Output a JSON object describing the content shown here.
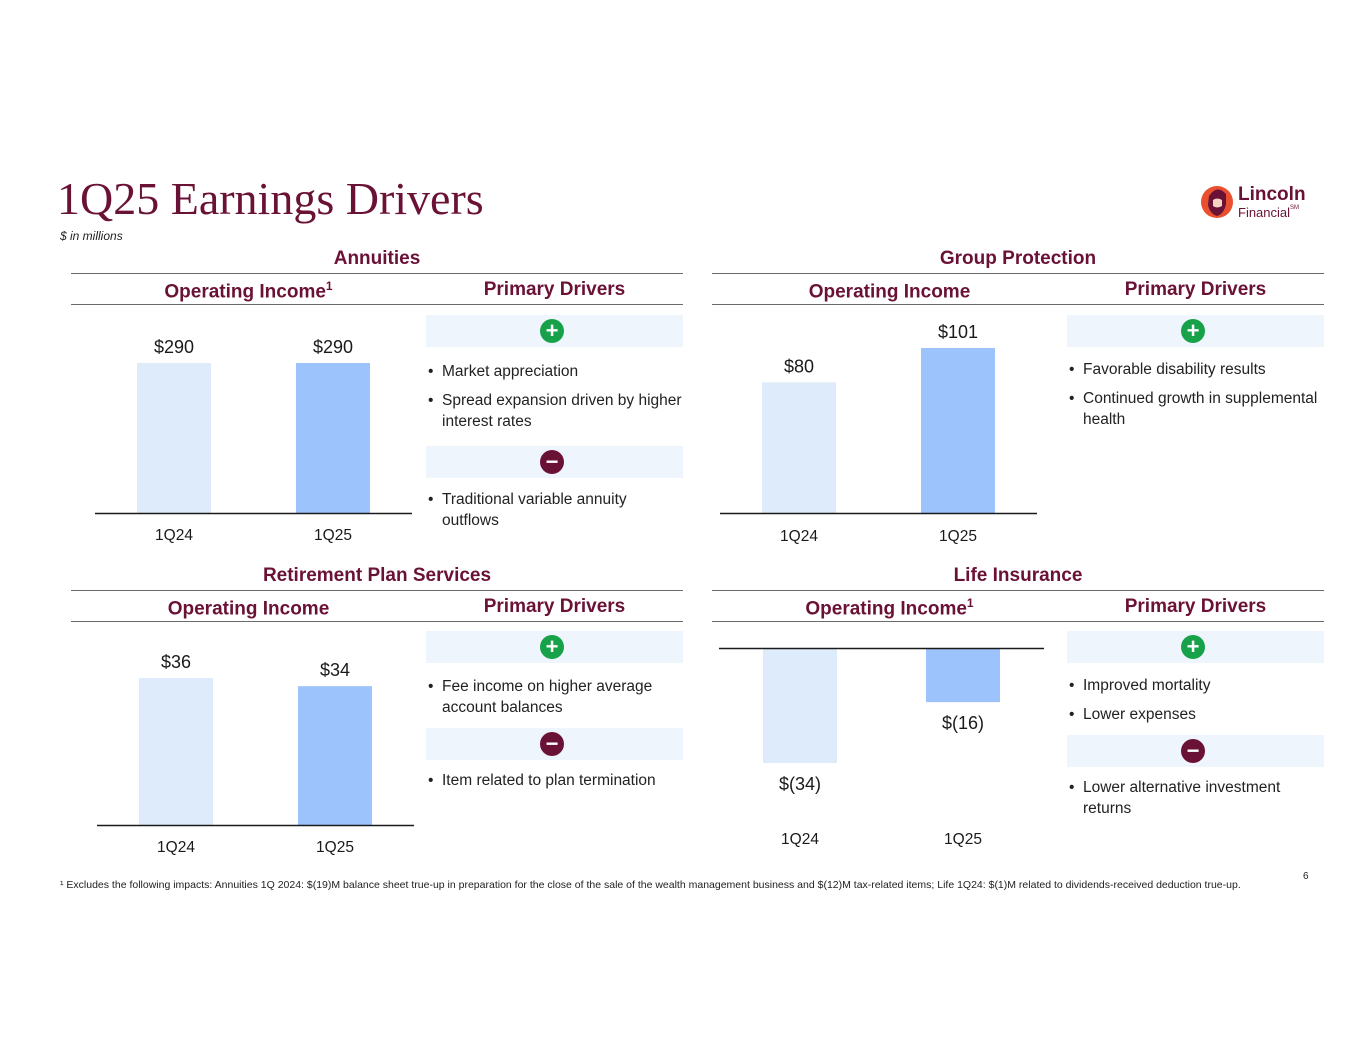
{
  "page": {
    "title": "1Q25 Earnings Drivers",
    "subtitle": "$ in millions",
    "logo": {
      "line1": "Lincoln",
      "line2": "Financial",
      "tm": "SM"
    },
    "footnote": "¹ Excludes the following impacts: Annuities 1Q 2024: $(19)M balance sheet true-up in preparation for the close of the sale of the wealth management business and $(12)M tax-related items;  Life 1Q24: $(1)M related to dividends-received deduction true-up.",
    "page_number": "6",
    "colors": {
      "brand": "#6a1136",
      "bar_prior": "#ddebfb",
      "bar_current": "#9cc3fb",
      "positive": "#17a24a",
      "negative": "#6a1136",
      "band": "#eef5fd"
    }
  },
  "panels": {
    "annuities": {
      "title": "Annuities",
      "income_head": "Operating Income",
      "income_sup": "1",
      "drivers_head": "Primary Drivers",
      "positive": [
        "Market appreciation",
        "Spread expansion driven by higher interest rates"
      ],
      "negative": [
        "Traditional  variable annuity outflows"
      ]
    },
    "group": {
      "title": "Group Protection",
      "income_head": "Operating Income",
      "income_sup": "",
      "drivers_head": "Primary Drivers",
      "positive": [
        "Favorable disability results",
        "Continued growth in supplemental health"
      ],
      "negative": []
    },
    "rps": {
      "title": "Retirement Plan Services",
      "income_head": "Operating Income",
      "income_sup": "",
      "drivers_head": "Primary Drivers",
      "positive": [
        "Fee income on higher average account balances"
      ],
      "negative": [
        "Item related to plan termination"
      ]
    },
    "life": {
      "title": "Life Insurance",
      "income_head": "Operating Income",
      "income_sup": "1",
      "drivers_head": "Primary Drivers",
      "positive": [
        "Improved mortality",
        "Lower expenses"
      ],
      "negative": [
        "Lower alternative investment returns"
      ]
    }
  },
  "chart_data": [
    {
      "type": "bar",
      "categories": [
        "1Q24",
        "1Q25"
      ],
      "values": [
        290,
        290
      ],
      "data_labels": [
        "$290",
        "$290"
      ]
    },
    {
      "type": "bar",
      "categories": [
        "1Q24",
        "1Q25"
      ],
      "values": [
        80,
        101
      ],
      "data_labels": [
        "$80",
        "$101"
      ]
    },
    {
      "type": "bar",
      "categories": [
        "1Q24",
        "1Q25"
      ],
      "values": [
        36,
        34
      ],
      "data_labels": [
        "$36",
        "$34"
      ]
    },
    {
      "type": "bar",
      "categories": [
        "1Q24",
        "1Q25"
      ],
      "values": [
        -34,
        -16
      ],
      "data_labels": [
        "$(34)",
        "$(16)"
      ]
    }
  ]
}
